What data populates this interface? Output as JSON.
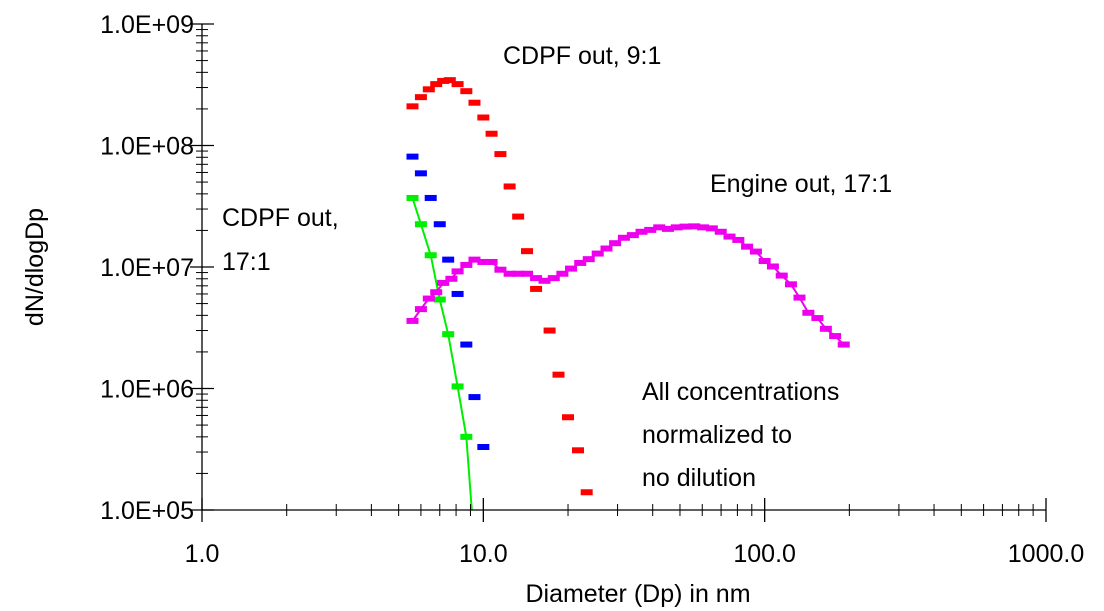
{
  "chart_data": {
    "type": "scatter",
    "title": "",
    "xlabel": "Diameter (Dp) in nm",
    "ylabel": "dN/dlogDp",
    "xscale": "log",
    "yscale": "log",
    "xlim": [
      1,
      1000
    ],
    "ylim": [
      100000,
      1000000000
    ],
    "grid": false,
    "x_tick_labels": [
      "1.0",
      "10.0",
      "100.0",
      "1000.0"
    ],
    "y_tick_labels": [
      "1.0E+05",
      "1.0E+06",
      "1.0E+07",
      "1.0E+08",
      "1.0E+09"
    ],
    "annotations": [
      [
        "CDPF out, 9:1"
      ],
      [
        "Engine out, 17:1"
      ],
      [
        "CDPF out,",
        "17:1"
      ],
      [
        "All concentrations",
        "normalized to",
        "no dilution"
      ]
    ],
    "series": [
      {
        "color": "#ff0000",
        "line": false,
        "points": [
          [
            5.6,
            210000000
          ],
          [
            6.0,
            250000000
          ],
          [
            6.4,
            290000000
          ],
          [
            6.8,
            320000000
          ],
          [
            7.2,
            340000000
          ],
          [
            7.6,
            345000000
          ],
          [
            8.1,
            320000000
          ],
          [
            8.7,
            280000000
          ],
          [
            9.3,
            225000000
          ],
          [
            10.0,
            170000000
          ],
          [
            10.7,
            125000000
          ],
          [
            11.5,
            85000000
          ],
          [
            12.4,
            46000000
          ],
          [
            13.3,
            26000000
          ],
          [
            14.3,
            13500000
          ],
          [
            15.4,
            6600000
          ],
          [
            17.2,
            3000000
          ],
          [
            18.5,
            1300000
          ],
          [
            20.0,
            580000
          ],
          [
            21.7,
            310000
          ],
          [
            23.3,
            140000
          ]
        ]
      },
      {
        "color": "#0000ff",
        "line": false,
        "points": [
          [
            5.6,
            81000000
          ],
          [
            6.0,
            59000000
          ],
          [
            6.5,
            37000000
          ],
          [
            7.0,
            22500000
          ],
          [
            7.5,
            11500000
          ],
          [
            8.1,
            6000000
          ],
          [
            8.7,
            2300000
          ],
          [
            9.3,
            850000
          ],
          [
            10.0,
            330000
          ]
        ]
      },
      {
        "color": "#00ee00",
        "line": true,
        "points": [
          [
            5.6,
            37000000
          ],
          [
            6.0,
            22500000
          ],
          [
            6.5,
            12500000
          ],
          [
            7.0,
            5400000
          ],
          [
            7.5,
            2800000
          ],
          [
            8.1,
            1040000
          ],
          [
            8.7,
            400000
          ],
          [
            9.1,
            100000
          ]
        ]
      },
      {
        "color": "#ee00ee",
        "line": true,
        "points": [
          [
            5.6,
            3600000
          ],
          [
            6.0,
            4500000
          ],
          [
            6.4,
            5500000
          ],
          [
            6.8,
            6200000
          ],
          [
            7.2,
            7400000
          ],
          [
            7.7,
            8000000
          ],
          [
            8.1,
            9200000
          ],
          [
            8.7,
            10400000
          ],
          [
            9.3,
            11500000
          ],
          [
            10.0,
            11000000
          ],
          [
            10.7,
            11000000
          ],
          [
            11.5,
            9500000
          ],
          [
            12.4,
            8800000
          ],
          [
            13.3,
            8800000
          ],
          [
            14.3,
            8800000
          ],
          [
            15.4,
            8100000
          ],
          [
            16.5,
            7700000
          ],
          [
            17.8,
            8100000
          ],
          [
            19.1,
            8800000
          ],
          [
            20.5,
            9700000
          ],
          [
            22.1,
            10800000
          ],
          [
            23.7,
            11600000
          ],
          [
            25.5,
            12900000
          ],
          [
            27.4,
            14200000
          ],
          [
            29.4,
            15700000
          ],
          [
            31.6,
            17400000
          ],
          [
            34.0,
            18300000
          ],
          [
            36.5,
            19500000
          ],
          [
            39.2,
            20200000
          ],
          [
            42.2,
            21200000
          ],
          [
            45.3,
            20600000
          ],
          [
            48.7,
            21200000
          ],
          [
            52.3,
            21500000
          ],
          [
            56.2,
            21600000
          ],
          [
            60.4,
            21200000
          ],
          [
            64.9,
            20800000
          ],
          [
            69.8,
            19500000
          ],
          [
            75.0,
            17800000
          ],
          [
            80.6,
            16700000
          ],
          [
            86.6,
            14700000
          ],
          [
            93.1,
            13400000
          ],
          [
            100.0,
            11200000
          ],
          [
            107.0,
            10100000
          ],
          [
            115.0,
            8500000
          ],
          [
            124.0,
            7200000
          ],
          [
            133.0,
            5600000
          ],
          [
            143.0,
            4200000
          ],
          [
            154.0,
            3800000
          ],
          [
            165.0,
            3100000
          ],
          [
            178.0,
            2700000
          ],
          [
            191.0,
            2300000
          ]
        ]
      }
    ]
  }
}
